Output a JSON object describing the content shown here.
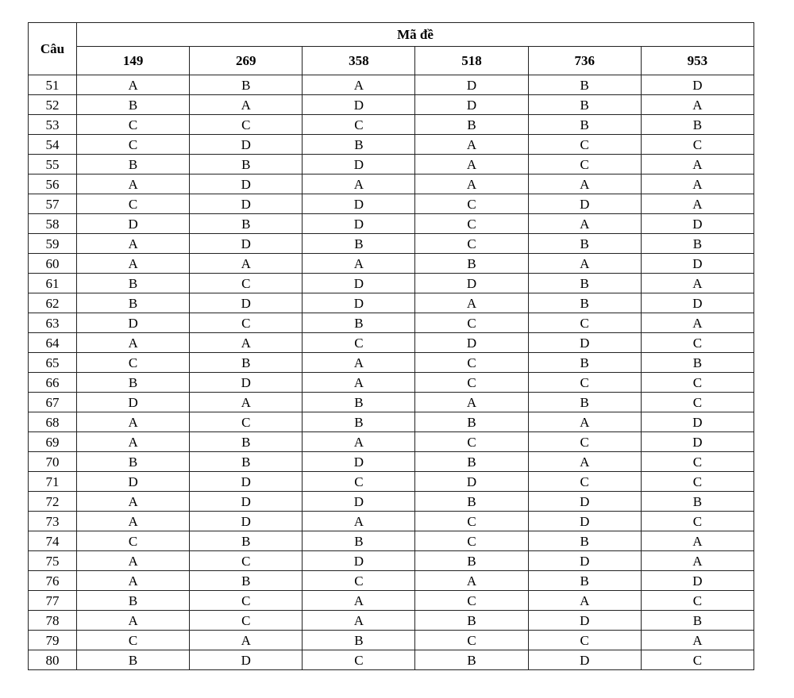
{
  "table": {
    "header_question": "Câu",
    "header_group": "Mã đề",
    "codes": [
      "149",
      "269",
      "358",
      "518",
      "736",
      "953"
    ],
    "rows": [
      [
        "51",
        "A",
        "B",
        "A",
        "D",
        "B",
        "D"
      ],
      [
        "52",
        "B",
        "A",
        "D",
        "D",
        "B",
        "A"
      ],
      [
        "53",
        "C",
        "C",
        "C",
        "B",
        "B",
        "B"
      ],
      [
        "54",
        "C",
        "D",
        "B",
        "A",
        "C",
        "C"
      ],
      [
        "55",
        "B",
        "B",
        "D",
        "A",
        "C",
        "A"
      ],
      [
        "56",
        "A",
        "D",
        "A",
        "A",
        "A",
        "A"
      ],
      [
        "57",
        "C",
        "D",
        "D",
        "C",
        "D",
        "A"
      ],
      [
        "58",
        "D",
        "B",
        "D",
        "C",
        "A",
        "D"
      ],
      [
        "59",
        "A",
        "D",
        "B",
        "C",
        "B",
        "B"
      ],
      [
        "60",
        "A",
        "A",
        "A",
        "B",
        "A",
        "D"
      ],
      [
        "61",
        "B",
        "C",
        "D",
        "D",
        "B",
        "A"
      ],
      [
        "62",
        "B",
        "D",
        "D",
        "A",
        "B",
        "D"
      ],
      [
        "63",
        "D",
        "C",
        "B",
        "C",
        "C",
        "A"
      ],
      [
        "64",
        "A",
        "A",
        "C",
        "D",
        "D",
        "C"
      ],
      [
        "65",
        "C",
        "B",
        "A",
        "C",
        "B",
        "B"
      ],
      [
        "66",
        "B",
        "D",
        "A",
        "C",
        "C",
        "C"
      ],
      [
        "67",
        "D",
        "A",
        "B",
        "A",
        "B",
        "C"
      ],
      [
        "68",
        "A",
        "C",
        "B",
        "B",
        "A",
        "D"
      ],
      [
        "69",
        "A",
        "B",
        "A",
        "C",
        "C",
        "D"
      ],
      [
        "70",
        "B",
        "B",
        "D",
        "B",
        "A",
        "C"
      ],
      [
        "71",
        "D",
        "D",
        "C",
        "D",
        "C",
        "C"
      ],
      [
        "72",
        "A",
        "D",
        "D",
        "B",
        "D",
        "B"
      ],
      [
        "73",
        "A",
        "D",
        "A",
        "C",
        "D",
        "C"
      ],
      [
        "74",
        "C",
        "B",
        "B",
        "C",
        "B",
        "A"
      ],
      [
        "75",
        "A",
        "C",
        "D",
        "B",
        "D",
        "A"
      ],
      [
        "76",
        "A",
        "B",
        "C",
        "A",
        "B",
        "D"
      ],
      [
        "77",
        "B",
        "C",
        "A",
        "C",
        "A",
        "C"
      ],
      [
        "78",
        "A",
        "C",
        "A",
        "B",
        "D",
        "B"
      ],
      [
        "79",
        "C",
        "A",
        "B",
        "C",
        "C",
        "A"
      ],
      [
        "80",
        "B",
        "D",
        "C",
        "B",
        "D",
        "C"
      ]
    ]
  }
}
